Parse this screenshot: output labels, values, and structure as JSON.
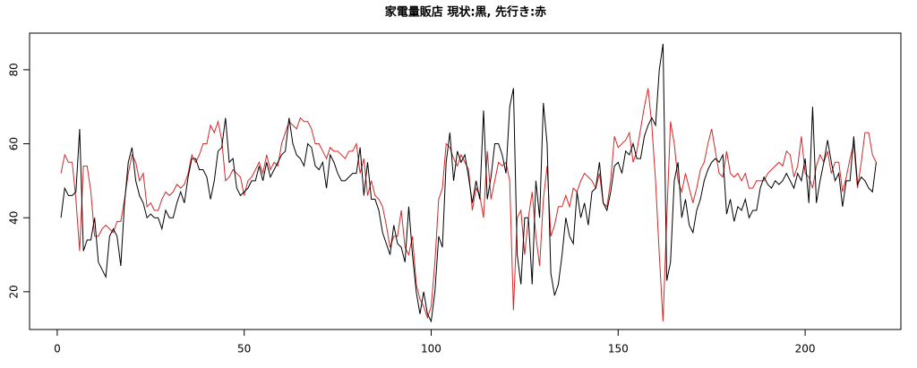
{
  "chart_data": {
    "type": "line",
    "title": "家電量販店 現状:黒, 先行き:赤",
    "x": [
      1,
      2,
      3,
      4,
      5,
      6,
      7,
      8,
      9,
      10,
      11,
      12,
      13,
      14,
      15,
      16,
      17,
      18,
      19,
      20,
      21,
      22,
      23,
      24,
      25,
      26,
      27,
      28,
      29,
      30,
      31,
      32,
      33,
      34,
      35,
      36,
      37,
      38,
      39,
      40,
      41,
      42,
      43,
      44,
      45,
      46,
      47,
      48,
      49,
      50,
      51,
      52,
      53,
      54,
      55,
      56,
      57,
      58,
      59,
      60,
      61,
      62,
      63,
      64,
      65,
      66,
      67,
      68,
      69,
      70,
      71,
      72,
      73,
      74,
      75,
      76,
      77,
      78,
      79,
      80,
      81,
      82,
      83,
      84,
      85,
      86,
      87,
      88,
      89,
      90,
      91,
      92,
      93,
      94,
      95,
      96,
      97,
      98,
      99,
      100,
      101,
      102,
      103,
      104,
      105,
      106,
      107,
      108,
      109,
      110,
      111,
      112,
      113,
      114,
      115,
      116,
      117,
      118,
      119,
      120,
      121,
      122,
      123,
      124,
      125,
      126,
      127,
      128,
      129,
      130,
      131,
      132,
      133,
      134,
      135,
      136,
      137,
      138,
      139,
      140,
      141,
      142,
      143,
      144,
      145,
      146,
      147,
      148,
      149,
      150,
      151,
      152,
      153,
      154,
      155,
      156,
      157,
      158,
      159,
      160,
      161,
      162,
      163,
      164,
      165,
      166,
      167,
      168,
      169,
      170,
      171,
      172,
      173,
      174,
      175,
      176,
      177,
      178,
      179,
      180,
      181,
      182,
      183,
      184,
      185,
      186,
      187,
      188,
      189,
      190,
      191,
      192,
      193,
      194,
      195,
      196,
      197,
      198,
      199,
      200,
      201,
      202,
      203,
      204,
      205,
      206,
      207,
      208,
      209,
      210,
      211,
      212,
      213,
      214,
      215,
      216,
      217,
      218,
      219
    ],
    "series": [
      {
        "color": "#000000",
        "values": [
          40,
          48,
          46,
          46,
          47,
          64,
          31,
          34,
          34,
          40,
          28,
          26,
          24,
          35,
          37,
          35,
          27,
          44,
          55,
          59,
          50,
          46,
          44,
          40,
          41,
          40,
          40,
          37,
          42,
          40,
          40,
          44,
          47,
          44,
          51,
          56,
          56,
          53,
          53,
          51,
          45,
          50,
          58,
          59,
          67,
          55,
          56,
          48,
          46,
          47,
          48,
          50,
          50,
          54,
          50,
          55,
          51,
          53,
          55,
          57,
          58,
          67,
          60,
          57,
          56,
          54,
          60,
          59,
          54,
          53,
          55,
          48,
          57,
          55,
          52,
          50,
          50,
          51,
          52,
          52,
          59,
          46,
          55,
          45,
          45,
          42,
          36,
          33,
          30,
          38,
          33,
          32,
          28,
          43,
          30,
          20,
          14,
          20,
          14,
          12,
          20,
          35,
          32,
          55,
          63,
          50,
          58,
          55,
          57,
          51,
          44,
          50,
          45,
          69,
          45,
          51,
          60,
          60,
          57,
          52,
          70,
          75,
          30,
          22,
          40,
          40,
          22,
          50,
          40,
          71,
          60,
          25,
          19,
          22,
          30,
          40,
          35,
          33,
          47,
          40,
          44,
          38,
          47,
          48,
          55,
          44,
          42,
          47,
          54,
          55,
          52,
          58,
          57,
          60,
          56,
          56,
          62,
          65,
          67,
          65,
          80,
          87,
          23,
          28,
          50,
          55,
          40,
          45,
          38,
          36,
          42,
          45,
          50,
          53,
          55,
          56,
          55,
          57,
          41,
          45,
          39,
          43,
          42,
          45,
          40,
          42,
          42,
          48,
          51,
          49,
          48,
          50,
          49,
          50,
          52,
          50,
          48,
          52,
          50,
          56,
          44,
          70,
          44,
          50,
          55,
          61,
          55,
          50,
          52,
          43,
          50,
          50,
          62,
          49,
          51,
          50,
          48,
          47,
          55
        ]
      },
      {
        "color": "#d62728",
        "values": [
          52,
          57,
          55,
          55,
          45,
          31,
          54,
          54,
          47,
          35,
          35,
          37,
          38,
          37,
          36,
          39,
          39,
          45,
          52,
          57,
          55,
          50,
          52,
          43,
          44,
          42,
          42,
          45,
          47,
          46,
          47,
          49,
          48,
          49,
          52,
          57,
          55,
          57,
          60,
          60,
          65,
          63,
          66,
          61,
          50,
          51,
          53,
          52,
          51,
          46,
          50,
          51,
          53,
          55,
          52,
          57,
          53,
          55,
          54,
          60,
          63,
          66,
          65,
          64,
          67,
          66,
          66,
          64,
          60,
          60,
          58,
          56,
          59,
          58,
          58,
          57,
          56,
          58,
          58,
          60,
          52,
          56,
          46,
          50,
          46,
          45,
          43,
          38,
          32,
          35,
          35,
          42,
          32,
          30,
          35,
          22,
          18,
          16,
          13,
          16,
          28,
          45,
          48,
          60,
          59,
          56,
          54,
          57,
          55,
          53,
          42,
          48,
          46,
          40,
          58,
          45,
          50,
          55,
          54,
          55,
          50,
          15,
          40,
          42,
          30,
          40,
          47,
          35,
          27,
          45,
          54,
          35,
          38,
          43,
          43,
          46,
          43,
          48,
          47,
          50,
          52,
          51,
          50,
          48,
          52,
          44,
          43,
          50,
          62,
          59,
          60,
          61,
          63,
          55,
          58,
          64,
          70,
          75,
          65,
          50,
          30,
          12,
          40,
          66,
          60,
          50,
          47,
          52,
          48,
          44,
          48,
          53,
          55,
          60,
          64,
          58,
          52,
          51,
          58,
          52,
          51,
          52,
          50,
          52,
          48,
          48,
          50,
          50,
          50,
          52,
          53,
          54,
          55,
          54,
          58,
          57,
          51,
          54,
          62,
          52,
          51,
          48,
          54,
          57,
          55,
          58,
          52,
          55,
          55,
          47,
          51,
          56,
          60,
          48,
          55,
          63,
          63,
          57,
          55
        ]
      }
    ],
    "xlim": [
      -7.4,
      225.6
    ],
    "ylim": [
      9.8,
      89.9
    ],
    "xticks": [
      0,
      50,
      100,
      150,
      200
    ],
    "yticks": [
      20,
      40,
      60,
      80
    ]
  }
}
